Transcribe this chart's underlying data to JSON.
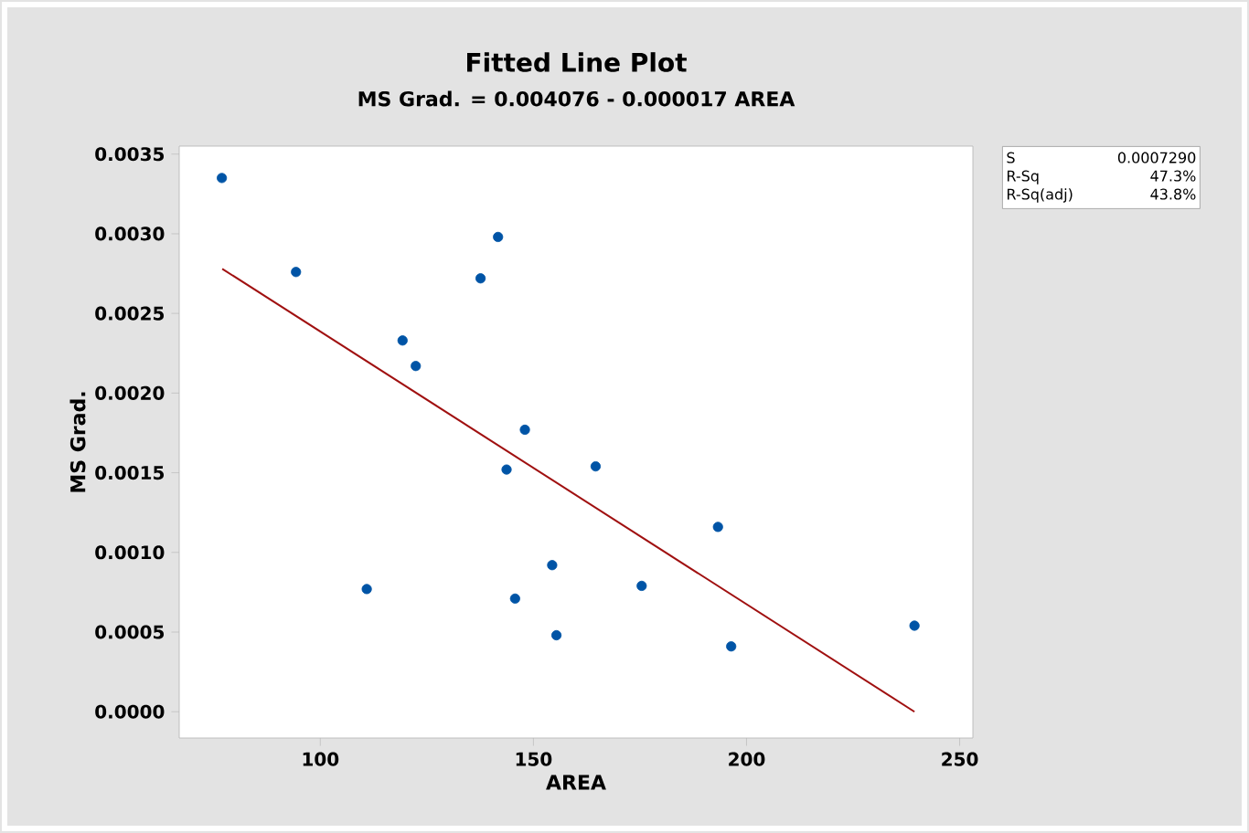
{
  "chart_data": {
    "type": "scatter",
    "title": "Fitted Line Plot",
    "subtitle": "MS Grad. = 0.004076 - 0.000017 AREA",
    "xlabel": "AREA",
    "ylabel": "MS Grad.",
    "xlim": [
      66.9,
      253.1
    ],
    "ylim": [
      -0.000165,
      0.00355
    ],
    "xticks": [
      100,
      150,
      200,
      250
    ],
    "yticks": [
      {
        "value": 0,
        "label": "0.0000"
      },
      {
        "value": 0.0005,
        "label": "0.0005"
      },
      {
        "value": 0.001,
        "label": "0.0010"
      },
      {
        "value": 0.0015,
        "label": "0.0015"
      },
      {
        "value": 0.002,
        "label": "0.0020"
      },
      {
        "value": 0.0025,
        "label": "0.0025"
      },
      {
        "value": 0.003,
        "label": "0.0030"
      },
      {
        "value": 0.0035,
        "label": "0.0035"
      }
    ],
    "grid": false,
    "series": [
      {
        "marker": "circle",
        "color": "#0054a6",
        "x": [
          76.9,
          94.3,
          110.9,
          119.3,
          122.4,
          137.6,
          141.7,
          143.7,
          145.7,
          148.0,
          154.4,
          155.4,
          164.6,
          175.4,
          193.3,
          196.4,
          239.4
        ],
        "values": [
          0.00335,
          0.00276,
          0.00077,
          0.00233,
          0.00217,
          0.00272,
          0.00298,
          0.00152,
          0.00071,
          0.00177,
          0.00092,
          0.00048,
          0.00154,
          0.00079,
          0.00116,
          0.00041,
          0.00054
        ]
      },
      {
        "type": "line",
        "color": "#a01010",
        "x": [
          77,
          239.4
        ],
        "values": [
          0.00278,
          0.0
        ]
      }
    ],
    "annotations": [
      "S",
      "0.0007290",
      "R-Sq",
      "47.3%",
      "R-Sq(adj)",
      "43.8%"
    ]
  }
}
